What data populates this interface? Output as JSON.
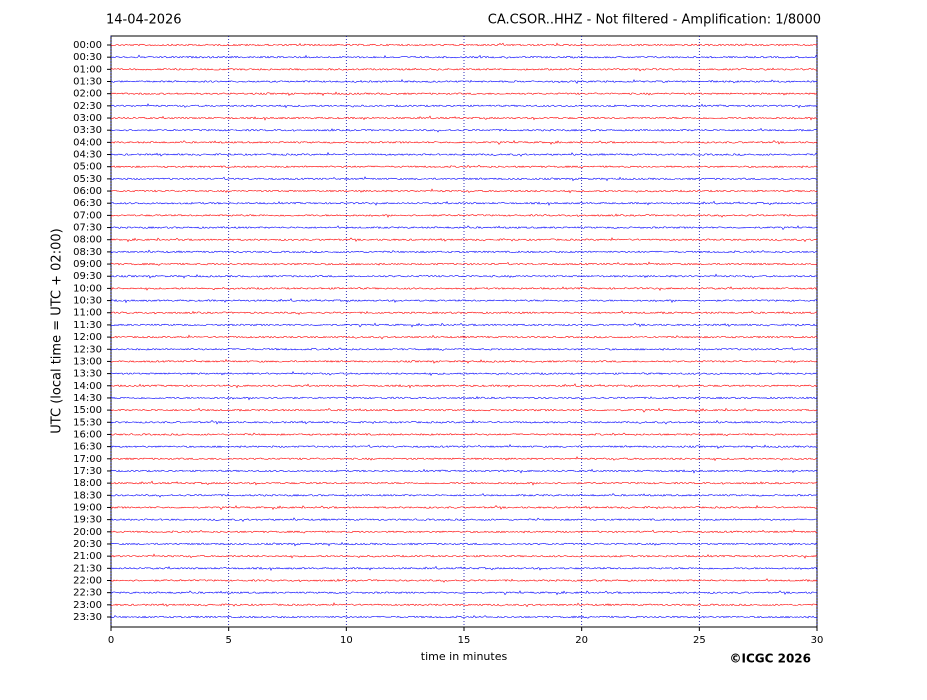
{
  "chart_data": {
    "type": "helicorder",
    "date": "14-04-2026",
    "title": "CA.CSOR..HHZ - Not filtered - Amplification: 1/8000",
    "xlabel": "time in minutes",
    "ylabel": "UTC (local time = UTC + 02:00)",
    "credit": "©ICGC 2026",
    "categories": [
      "00:00",
      "00:30",
      "01:00",
      "01:30",
      "02:00",
      "02:30",
      "03:00",
      "03:30",
      "04:00",
      "04:30",
      "05:00",
      "05:30",
      "06:00",
      "06:30",
      "07:00",
      "07:30",
      "08:00",
      "08:30",
      "09:00",
      "09:30",
      "10:00",
      "10:30",
      "11:00",
      "11:30",
      "12:00",
      "12:30",
      "13:00",
      "13:30",
      "14:00",
      "14:30",
      "15:00",
      "15:30",
      "16:00",
      "16:30",
      "17:00",
      "17:30",
      "18:00",
      "18:30",
      "19:00",
      "19:30",
      "20:00",
      "20:30",
      "21:00",
      "21:30",
      "22:00",
      "22:30",
      "23:00",
      "23:30"
    ],
    "colors": [
      "#ff0000",
      "#0000ff"
    ],
    "xlim": [
      0,
      30
    ],
    "xticks": [
      0,
      5,
      10,
      15,
      20,
      25,
      30
    ],
    "grid": true
  }
}
